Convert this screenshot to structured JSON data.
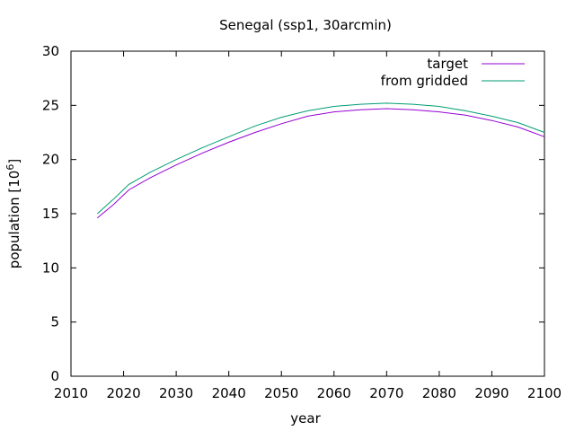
{
  "chart_data": {
    "type": "line",
    "title": "Senegal (ssp1, 30arcmin)",
    "xlabel": "year",
    "ylabel": "population [10",
    "ylabel_sup": "6",
    "ylabel_close": "]",
    "xlim": [
      2010,
      2100
    ],
    "ylim": [
      0,
      30
    ],
    "xticks": [
      2010,
      2020,
      2030,
      2040,
      2050,
      2060,
      2070,
      2080,
      2090,
      2100
    ],
    "yticks": [
      0,
      5,
      10,
      15,
      20,
      25,
      30
    ],
    "grid": false,
    "legend_position": "top-right",
    "x": [
      2015,
      2018,
      2021,
      2025,
      2030,
      2035,
      2040,
      2045,
      2050,
      2055,
      2060,
      2065,
      2070,
      2075,
      2080,
      2085,
      2090,
      2095,
      2100
    ],
    "series": [
      {
        "name": "target",
        "color": "#9400d3",
        "values": [
          14.6,
          15.8,
          17.2,
          18.3,
          19.5,
          20.6,
          21.6,
          22.5,
          23.3,
          24.0,
          24.4,
          24.6,
          24.7,
          24.6,
          24.4,
          24.1,
          23.6,
          23.0,
          22.1
        ]
      },
      {
        "name": "from gridded",
        "color": "#009e73",
        "values": [
          15.0,
          16.3,
          17.7,
          18.8,
          20.0,
          21.1,
          22.1,
          23.1,
          23.9,
          24.5,
          24.9,
          25.1,
          25.2,
          25.1,
          24.9,
          24.5,
          24.0,
          23.4,
          22.5
        ]
      }
    ]
  }
}
